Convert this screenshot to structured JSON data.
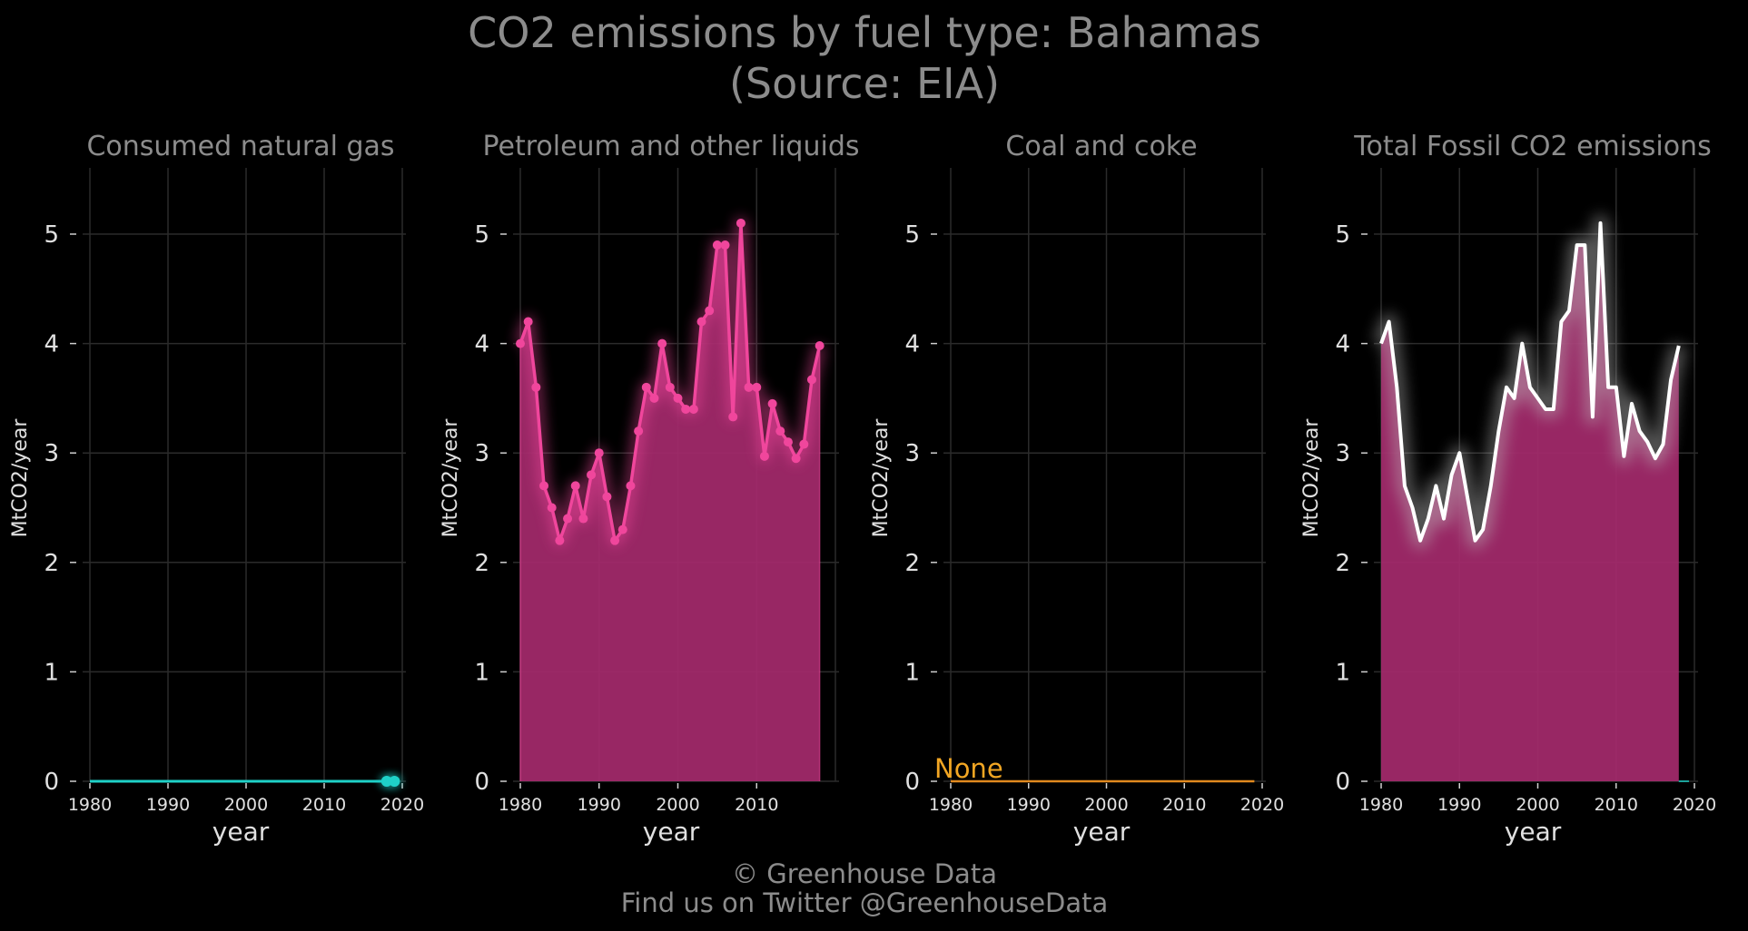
{
  "title": {
    "line1": "CO2 emissions by fuel type: Bahamas",
    "line2": "(Source: EIA)"
  },
  "footer": {
    "line1": "© Greenhouse Data",
    "line2": "Find us on Twitter @GreenhouseData"
  },
  "colors": {
    "background": "#000000",
    "natural_gas": "#1fd1c8",
    "petroleum": "#f0469c",
    "petroleum_fill": "#a52a6c",
    "coal": "#e0891e",
    "coal_label": "#f2a623",
    "total_line": "#ffffff",
    "total_fill": "#a52a6c"
  },
  "chart_data": [
    {
      "type": "line",
      "id": "gas",
      "title": "Consumed natural gas",
      "xlabel": "year",
      "ylabel": "MtCO2/year",
      "xlim": [
        1980,
        2020
      ],
      "ylim": [
        0,
        5.6
      ],
      "xticks": [
        1980,
        1990,
        2000,
        2010,
        2020
      ],
      "yticks": [
        0,
        1,
        2,
        3,
        4,
        5
      ],
      "x": [
        1980,
        1981,
        1982,
        1983,
        1984,
        1985,
        1986,
        1987,
        1988,
        1989,
        1990,
        1991,
        1992,
        1993,
        1994,
        1995,
        1996,
        1997,
        1998,
        1999,
        2000,
        2001,
        2002,
        2003,
        2004,
        2005,
        2006,
        2007,
        2008,
        2009,
        2010,
        2011,
        2012,
        2013,
        2014,
        2015,
        2016,
        2017,
        2018,
        2019
      ],
      "values": [
        0,
        0,
        0,
        0,
        0,
        0,
        0,
        0,
        0,
        0,
        0,
        0,
        0,
        0,
        0,
        0,
        0,
        0,
        0,
        0,
        0,
        0,
        0,
        0,
        0,
        0,
        0,
        0,
        0,
        0,
        0,
        0,
        0,
        0,
        0,
        0,
        0,
        0,
        0,
        0
      ],
      "markers_x": [
        2018,
        2019
      ],
      "markers_values": [
        0,
        0
      ],
      "annotation": ""
    },
    {
      "type": "area",
      "id": "petroleum",
      "title": "Petroleum and other liquids",
      "xlabel": "year",
      "ylabel": "MtCO2/year",
      "xlim": [
        1980,
        2020
      ],
      "ylim": [
        0,
        5.6
      ],
      "xticks": [
        1980,
        1990,
        2000,
        2010
      ],
      "yticks": [
        0,
        1,
        2,
        3,
        4,
        5
      ],
      "x": [
        1980,
        1981,
        1982,
        1983,
        1984,
        1985,
        1986,
        1987,
        1988,
        1989,
        1990,
        1991,
        1992,
        1993,
        1994,
        1995,
        1996,
        1997,
        1998,
        1999,
        2000,
        2001,
        2002,
        2003,
        2004,
        2005,
        2006,
        2007,
        2008,
        2009,
        2010,
        2011,
        2012,
        2013,
        2014,
        2015,
        2016,
        2017,
        2018
      ],
      "values": [
        4.0,
        4.2,
        3.6,
        2.7,
        2.5,
        2.2,
        2.4,
        2.7,
        2.4,
        2.8,
        3.0,
        2.6,
        2.2,
        2.3,
        2.7,
        3.2,
        3.6,
        3.5,
        4.0,
        3.6,
        3.5,
        3.4,
        3.4,
        4.2,
        4.3,
        4.9,
        4.9,
        3.33,
        5.1,
        3.6,
        3.6,
        2.97,
        3.45,
        3.2,
        3.1,
        2.95,
        3.08,
        3.67,
        3.98
      ],
      "annotation": ""
    },
    {
      "type": "line",
      "id": "coal",
      "title": "Coal and coke",
      "xlabel": "year",
      "ylabel": "MtCO2/year",
      "xlim": [
        1980,
        2020
      ],
      "ylim": [
        0,
        5.6
      ],
      "xticks": [
        1980,
        1990,
        2000,
        2010,
        2020
      ],
      "yticks": [
        0,
        1,
        2,
        3,
        4,
        5
      ],
      "x": [
        1980,
        2019
      ],
      "values": [
        0,
        0
      ],
      "annotation": "None"
    },
    {
      "type": "area",
      "id": "total",
      "title": "Total Fossil CO2 emissions",
      "xlabel": "year",
      "ylabel": "MtCO2/year",
      "xlim": [
        1980,
        2020
      ],
      "ylim": [
        0,
        5.6
      ],
      "xticks": [
        1980,
        1990,
        2000,
        2010,
        2020
      ],
      "yticks": [
        0,
        1,
        2,
        3,
        4,
        5
      ],
      "x": [
        1980,
        1981,
        1982,
        1983,
        1984,
        1985,
        1986,
        1987,
        1988,
        1989,
        1990,
        1991,
        1992,
        1993,
        1994,
        1995,
        1996,
        1997,
        1998,
        1999,
        2000,
        2001,
        2002,
        2003,
        2004,
        2005,
        2006,
        2007,
        2008,
        2009,
        2010,
        2011,
        2012,
        2013,
        2014,
        2015,
        2016,
        2017,
        2018
      ],
      "values": [
        4.0,
        4.2,
        3.6,
        2.7,
        2.5,
        2.2,
        2.4,
        2.7,
        2.4,
        2.8,
        3.0,
        2.6,
        2.2,
        2.3,
        2.7,
        3.2,
        3.6,
        3.5,
        4.0,
        3.6,
        3.5,
        3.4,
        3.4,
        4.2,
        4.3,
        4.9,
        4.9,
        3.33,
        5.1,
        3.6,
        3.6,
        2.97,
        3.45,
        3.2,
        3.1,
        2.95,
        3.08,
        3.67,
        3.98
      ],
      "annotation": ""
    }
  ]
}
